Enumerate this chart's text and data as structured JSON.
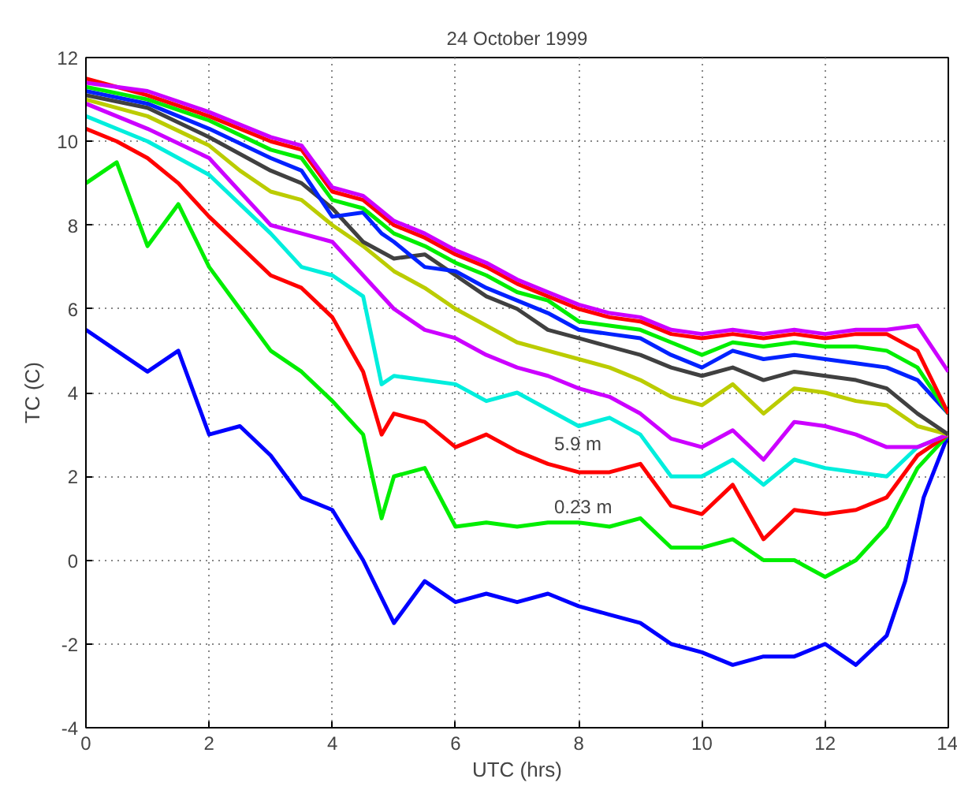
{
  "chart_data": {
    "type": "line",
    "title": "24 October 1999",
    "xlabel": "UTC (hrs)",
    "ylabel": "TC (C)",
    "xlim": [
      0,
      14
    ],
    "ylim": [
      -4,
      12
    ],
    "xticks": [
      0,
      2,
      4,
      6,
      8,
      10,
      12,
      14
    ],
    "yticks": [
      -4,
      -2,
      0,
      2,
      4,
      6,
      8,
      10,
      12
    ],
    "grid": true,
    "line_style": "solid",
    "annotations": [
      "5.9 m",
      "0.23 m"
    ],
    "series": [
      {
        "color": "#0000ff",
        "x": [
          0,
          0.5,
          1,
          1.5,
          2,
          2.5,
          3,
          3.5,
          4,
          4.5,
          5,
          5.5,
          6,
          6.5,
          7,
          7.5,
          8,
          8.5,
          9,
          9.5,
          10,
          10.5,
          11,
          11.5,
          12,
          12.5,
          13,
          13.3,
          13.6,
          14
        ],
        "values": [
          5.5,
          5,
          4.5,
          5,
          3,
          3.2,
          2.5,
          1.5,
          1.2,
          0,
          -1.5,
          -0.5,
          -1,
          -0.8,
          -1,
          -0.8,
          -1.1,
          -1.3,
          -1.5,
          -2,
          -2.2,
          -2.5,
          -2.3,
          -2.3,
          -2,
          -2.5,
          -1.8,
          -0.5,
          1.5,
          3
        ]
      },
      {
        "color": "#00ee00",
        "x": [
          0,
          0.5,
          1,
          1.5,
          2,
          2.5,
          3,
          3.5,
          4,
          4.5,
          4.8,
          5,
          5.5,
          6,
          6.5,
          7,
          7.5,
          8,
          8.5,
          9,
          9.5,
          10,
          10.5,
          11,
          11.5,
          12,
          12.5,
          13,
          13.5,
          14
        ],
        "values": [
          9,
          9.5,
          7.5,
          8.5,
          7,
          6,
          5,
          4.5,
          3.8,
          3,
          1,
          2,
          2.2,
          0.8,
          0.9,
          0.8,
          0.9,
          0.9,
          0.8,
          1,
          0.3,
          0.3,
          0.5,
          0,
          0,
          -0.4,
          0,
          0.8,
          2.2,
          3
        ]
      },
      {
        "color": "#ff0000",
        "x": [
          0,
          0.5,
          1,
          1.5,
          2,
          2.5,
          3,
          3.5,
          4,
          4.5,
          4.8,
          5,
          5.5,
          6,
          6.5,
          7,
          7.5,
          8,
          8.5,
          9,
          9.5,
          10,
          10.5,
          11,
          11.5,
          12,
          12.5,
          13,
          13.5,
          14
        ],
        "values": [
          10.3,
          10,
          9.6,
          9,
          8.2,
          7.5,
          6.8,
          6.5,
          5.8,
          4.5,
          3,
          3.5,
          3.3,
          2.7,
          3,
          2.6,
          2.3,
          2.1,
          2.1,
          2.3,
          1.3,
          1.1,
          1.8,
          0.5,
          1.2,
          1.1,
          1.2,
          1.5,
          2.5,
          3
        ]
      },
      {
        "color": "#00eedd",
        "x": [
          0,
          1,
          2,
          3,
          3.5,
          4,
          4.5,
          4.8,
          5,
          6,
          6.5,
          7,
          8,
          8.5,
          9,
          9.5,
          10,
          10.5,
          11,
          11.5,
          12,
          12.5,
          13,
          13.5,
          14
        ],
        "values": [
          10.6,
          10,
          9.2,
          7.8,
          7,
          6.8,
          6.3,
          4.2,
          4.4,
          4.2,
          3.8,
          4,
          3.2,
          3.4,
          3,
          2,
          2,
          2.4,
          1.8,
          2.4,
          2.2,
          2.1,
          2,
          2.7,
          3
        ]
      },
      {
        "color": "#cc00ff",
        "x": [
          0,
          1,
          2,
          2.5,
          3,
          3.5,
          4,
          4.5,
          5,
          5.5,
          6,
          6.5,
          7,
          7.5,
          8,
          8.5,
          9,
          9.5,
          10,
          10.5,
          11,
          11.5,
          12,
          12.5,
          13,
          13.5,
          14
        ],
        "values": [
          10.9,
          10.3,
          9.6,
          8.8,
          8,
          7.8,
          7.6,
          6.8,
          6,
          5.5,
          5.3,
          4.9,
          4.6,
          4.4,
          4.1,
          3.9,
          3.5,
          2.9,
          2.7,
          3.1,
          2.4,
          3.3,
          3.2,
          3,
          2.7,
          2.7,
          3
        ]
      },
      {
        "color": "#bbcc00",
        "x": [
          0,
          1,
          2,
          2.5,
          3,
          3.5,
          4,
          4.5,
          5,
          5.5,
          6,
          6.5,
          7,
          7.5,
          8,
          8.5,
          9,
          9.5,
          10,
          10.5,
          11,
          11.5,
          12,
          12.5,
          13,
          13.5,
          14
        ],
        "values": [
          11,
          10.6,
          9.9,
          9.3,
          8.8,
          8.6,
          8,
          7.5,
          6.9,
          6.5,
          6,
          5.6,
          5.2,
          5,
          4.8,
          4.6,
          4.3,
          3.9,
          3.7,
          4.2,
          3.5,
          4.1,
          4,
          3.8,
          3.7,
          3.2,
          3
        ]
      },
      {
        "color": "#404040",
        "x": [
          0,
          1,
          2,
          2.5,
          3,
          3.5,
          4,
          4.5,
          5,
          5.5,
          6,
          6.5,
          7,
          7.5,
          8,
          8.5,
          9,
          9.5,
          10,
          10.5,
          11,
          11.5,
          12,
          12.5,
          13,
          13.5,
          14
        ],
        "values": [
          11.1,
          10.8,
          10.1,
          9.7,
          9.3,
          9,
          8.4,
          7.6,
          7.2,
          7.3,
          6.8,
          6.3,
          6,
          5.5,
          5.3,
          5.1,
          4.9,
          4.6,
          4.4,
          4.6,
          4.3,
          4.5,
          4.4,
          4.3,
          4.1,
          3.5,
          3
        ]
      },
      {
        "color": "#0022ff",
        "x": [
          0,
          1,
          2,
          3,
          3.5,
          4,
          4.5,
          4.8,
          5,
          5.5,
          6,
          6.5,
          7,
          7.5,
          8,
          8.5,
          9,
          9.5,
          10,
          10.5,
          11,
          11.5,
          12,
          12.5,
          13,
          13.5,
          14
        ],
        "values": [
          11.2,
          10.9,
          10.3,
          9.6,
          9.3,
          8.2,
          8.3,
          7.8,
          7.6,
          7,
          6.9,
          6.5,
          6.2,
          5.9,
          5.5,
          5.4,
          5.3,
          4.9,
          4.6,
          5,
          4.8,
          4.9,
          4.8,
          4.7,
          4.6,
          4.3,
          3.5
        ]
      },
      {
        "color": "#00ee00",
        "x": [
          0,
          1,
          2,
          3,
          3.5,
          4,
          4.5,
          5,
          5.5,
          6,
          6.5,
          7,
          7.5,
          8,
          8.5,
          9,
          9.5,
          10,
          10.5,
          11,
          11.5,
          12,
          12.5,
          13,
          13.5,
          14
        ],
        "values": [
          11.3,
          11,
          10.5,
          9.8,
          9.6,
          8.6,
          8.4,
          7.8,
          7.5,
          7.1,
          6.8,
          6.4,
          6.2,
          5.7,
          5.6,
          5.5,
          5.2,
          4.9,
          5.2,
          5.1,
          5.2,
          5.1,
          5.1,
          5,
          4.6,
          3.5
        ]
      },
      {
        "color": "#ff0000",
        "x": [
          0,
          1,
          2,
          3,
          3.5,
          4,
          4.5,
          5,
          5.5,
          6,
          6.5,
          7,
          7.5,
          8,
          8.5,
          9,
          9.5,
          10,
          10.5,
          11,
          11.5,
          12,
          12.5,
          13,
          13.5,
          14
        ],
        "values": [
          11.5,
          11.1,
          10.6,
          10,
          9.8,
          8.8,
          8.6,
          8,
          7.7,
          7.3,
          7,
          6.6,
          6.3,
          6,
          5.8,
          5.7,
          5.4,
          5.3,
          5.4,
          5.3,
          5.4,
          5.3,
          5.4,
          5.4,
          5,
          3.5
        ]
      },
      {
        "color": "#cc00ff",
        "x": [
          0,
          1,
          2,
          3,
          3.5,
          4,
          4.5,
          5,
          5.5,
          6,
          6.5,
          7,
          7.5,
          8,
          8.5,
          9,
          9.5,
          10,
          10.5,
          11,
          11.5,
          12,
          12.5,
          13,
          13.5,
          14
        ],
        "values": [
          11.4,
          11.2,
          10.7,
          10.1,
          9.9,
          8.9,
          8.7,
          8.1,
          7.8,
          7.4,
          7.1,
          6.7,
          6.4,
          6.1,
          5.9,
          5.8,
          5.5,
          5.4,
          5.5,
          5.4,
          5.5,
          5.4,
          5.5,
          5.5,
          5.6,
          4.5
        ]
      }
    ]
  }
}
